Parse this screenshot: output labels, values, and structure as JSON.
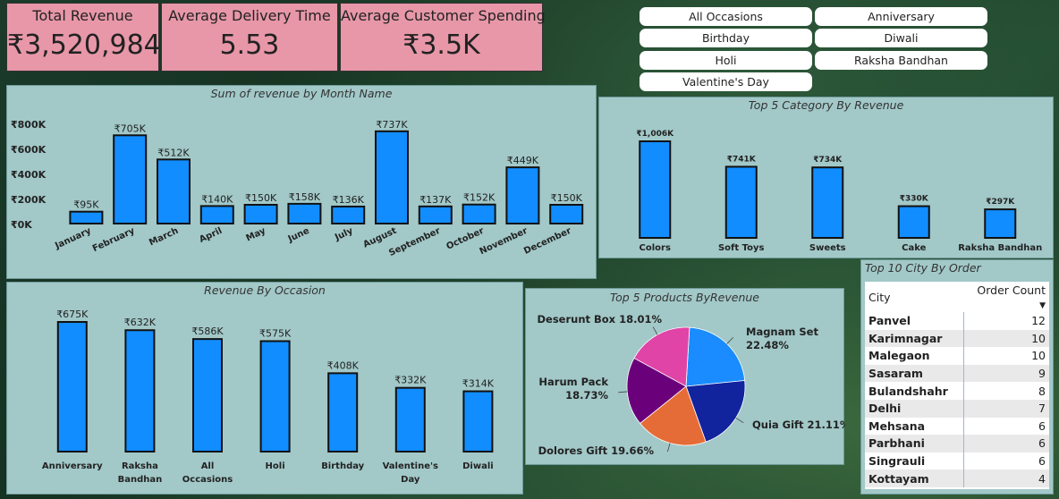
{
  "kpis": [
    {
      "title": "Total Revenue",
      "value": "₹3,520,984"
    },
    {
      "title": "Average Delivery Time",
      "value": "5.53"
    },
    {
      "title": "Average Customer Spending",
      "value": "₹3.5K"
    }
  ],
  "slicers": [
    "All Occasions",
    "Anniversary",
    "Birthday",
    "Diwali",
    "Holi",
    "Raksha Bandhan",
    "Valentine's Day"
  ],
  "colors": {
    "bar": "#118dff",
    "panel": "#a2c8c8",
    "kpi": "#e797a8"
  },
  "charts": {
    "month": {
      "title": "Sum of revenue by Month Name",
      "yticks": [
        "₹800K",
        "₹600K",
        "₹400K",
        "₹200K",
        "₹0K"
      ]
    },
    "category": {
      "title": "Top 5 Category By Revenue"
    },
    "occasion": {
      "title": "Revenue By Occasion"
    },
    "products": {
      "title": "Top 5 Products ByRevenue"
    }
  },
  "chart_data": [
    {
      "type": "bar",
      "title": "Sum of revenue by Month Name",
      "categories": [
        "January",
        "February",
        "March",
        "April",
        "May",
        "June",
        "July",
        "August",
        "September",
        "October",
        "November",
        "December"
      ],
      "values": [
        95,
        705,
        512,
        140,
        150,
        158,
        136,
        737,
        137,
        152,
        449,
        150
      ],
      "labels": [
        "₹95K",
        "₹705K",
        "₹512K",
        "₹140K",
        "₹150K",
        "₹158K",
        "₹136K",
        "₹737K",
        "₹137K",
        "₹152K",
        "₹449K",
        "₹150K"
      ],
      "ylim": [
        0,
        800
      ]
    },
    {
      "type": "bar",
      "title": "Top 5 Category By Revenue",
      "categories": [
        "Colors",
        "Soft Toys",
        "Sweets",
        "Cake",
        "Raksha Bandhan"
      ],
      "values": [
        1006,
        741,
        734,
        330,
        297
      ],
      "labels": [
        "₹1,006K",
        "₹741K",
        "₹734K",
        "₹330K",
        "₹297K"
      ]
    },
    {
      "type": "bar",
      "title": "Revenue By Occasion",
      "categories": [
        "Anniversary",
        "Raksha Bandhan",
        "All Occasions",
        "Holi",
        "Birthday",
        "Valentine's Day",
        "Diwali"
      ],
      "values": [
        675,
        632,
        586,
        575,
        408,
        332,
        314
      ],
      "labels": [
        "₹675K",
        "₹632K",
        "₹586K",
        "₹575K",
        "₹408K",
        "₹332K",
        "₹314K"
      ]
    },
    {
      "type": "pie",
      "title": "Top 5 Products ByRevenue",
      "slices": [
        {
          "name": "Magnam Set",
          "percent": 22.48,
          "label": "22.48%",
          "color": "#1a8cff"
        },
        {
          "name": "Quia Gift",
          "percent": 21.11,
          "label": "21.11%",
          "color": "#12239e"
        },
        {
          "name": "Dolores Gift",
          "percent": 19.66,
          "label": "19.66%",
          "color": "#e66c37"
        },
        {
          "name": "Harum Pack",
          "percent": 18.73,
          "label": "18.73%",
          "color": "#6b007b"
        },
        {
          "name": "Deserunt Box",
          "percent": 18.01,
          "label": "18.01%",
          "color": "#e044a7"
        }
      ]
    },
    {
      "type": "table",
      "title": "Top 10 City By Order",
      "columns": [
        "City",
        "Order Count"
      ],
      "rows": [
        [
          "Panvel",
          "12"
        ],
        [
          "Karimnagar",
          "10"
        ],
        [
          "Malegaon",
          "10"
        ],
        [
          "Sasaram",
          "9"
        ],
        [
          "Bulandshahr",
          "8"
        ],
        [
          "Delhi",
          "7"
        ],
        [
          "Mehsana",
          "6"
        ],
        [
          "Parbhani",
          "6"
        ],
        [
          "Singrauli",
          "6"
        ],
        [
          "Kottayam",
          "4"
        ]
      ]
    }
  ]
}
